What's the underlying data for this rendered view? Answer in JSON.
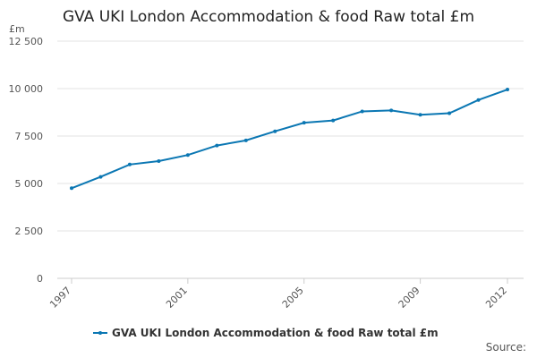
{
  "chart_data": {
    "type": "line",
    "title": "GVA UKI London Accommodation & food Raw total £m",
    "y_label": "£m",
    "source": "Source:",
    "x": [
      1997,
      1998,
      1999,
      2000,
      2001,
      2002,
      2003,
      2004,
      2005,
      2006,
      2007,
      2008,
      2009,
      2010,
      2011,
      2012
    ],
    "xlim": [
      1997,
      2012
    ],
    "xticks": [
      1997,
      2001,
      2005,
      2009,
      2012
    ],
    "ylim": [
      0,
      12500
    ],
    "yticks": [
      0,
      {
        "value": 2500,
        "label": "2 500"
      },
      {
        "value": 5000,
        "label": "5 000"
      },
      {
        "value": 7500,
        "label": "7 500"
      },
      {
        "value": 10000,
        "label": "10 000"
      },
      {
        "value": 12500,
        "label": "12 500"
      }
    ],
    "grid": true,
    "series": [
      {
        "name": "GVA UKI London Accommodation & food Raw total £m",
        "color": "#0b77b3",
        "values": [
          4750,
          5350,
          6000,
          6180,
          6500,
          7000,
          7270,
          7750,
          8200,
          8320,
          8800,
          8850,
          8620,
          8700,
          9400,
          9950
        ]
      }
    ]
  }
}
